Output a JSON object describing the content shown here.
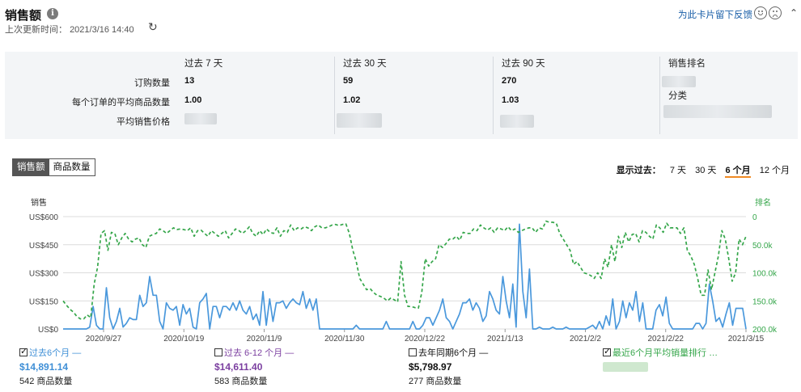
{
  "header": {
    "title": "销售额",
    "updated_label": "上次更新时间：",
    "updated_time": "2021/3/16 14:40",
    "feedback": "为此卡片留下反馈"
  },
  "metrics": {
    "columns": [
      {
        "header": "过去 7 天",
        "orders": "13",
        "avg_items": "1.00"
      },
      {
        "header": "过去 30 天",
        "orders": "59",
        "avg_items": "1.02"
      },
      {
        "header": "过去 90 天",
        "orders": "270",
        "avg_items": "1.03"
      }
    ],
    "row_labels": [
      "订购数量",
      "每个订单的平均商品数量",
      "平均销售价格"
    ],
    "rank_header": "销售排名",
    "category_label": "分类"
  },
  "toggle": {
    "sales": "销售额",
    "units": "商品数量"
  },
  "range": {
    "label": "显示过去：",
    "options": [
      "7 天",
      "30 天",
      "6 个月",
      "12 个月"
    ],
    "selected": "6 个月"
  },
  "legend": [
    {
      "label": "过去6个月",
      "value": "$14,891.14",
      "units": "542 商品数量",
      "color": "#3f8fd6",
      "checked": true
    },
    {
      "label": "过去 6-12 个月",
      "value": "$14,611.40",
      "units": "583 商品数量",
      "color": "#7b3fa0",
      "checked": false
    },
    {
      "label": "去年同期6个月",
      "value": "$5,798.97",
      "units": "277 商品数量",
      "color": "#111111",
      "checked": false
    },
    {
      "label": "最近6个月平均销量排行 …",
      "color": "#35a64a",
      "checked": true
    }
  ],
  "chart_data": {
    "type": "line",
    "left_axis_label": "销售",
    "right_axis_label": "排名",
    "left_ticks": [
      "US$600",
      "US$450",
      "US$300",
      "US$150",
      "US$0"
    ],
    "right_ticks": [
      "0",
      "50.0k",
      "100.0k",
      "150.0k",
      "200.0k"
    ],
    "x_labels": [
      "2020/9/27",
      "2020/10/19",
      "2020/11/9",
      "2020/11/30",
      "2020/12/22",
      "2021/1/13",
      "2021/2/2",
      "2021/2/22",
      "2021/3/15"
    ],
    "ylim": [
      0,
      600
    ],
    "y2lim": [
      0,
      200000
    ],
    "series": [
      {
        "name": "过去6个月",
        "axis": "left",
        "color": "#4a98dc",
        "values": [
          0,
          0,
          0,
          0,
          0,
          0,
          0,
          0,
          10,
          120,
          20,
          0,
          0,
          220,
          60,
          0,
          40,
          110,
          10,
          30,
          60,
          50,
          50,
          180,
          120,
          140,
          280,
          180,
          180,
          40,
          0,
          140,
          110,
          100,
          120,
          20,
          130,
          80,
          110,
          10,
          0,
          140,
          160,
          190,
          0,
          120,
          120,
          60,
          120,
          120,
          100,
          140,
          100,
          150,
          100,
          80,
          120,
          50,
          80,
          20,
          200,
          20,
          160,
          40,
          140,
          140,
          150,
          110,
          140,
          160,
          140,
          130,
          200,
          110,
          160,
          100,
          160,
          0,
          0,
          0,
          0,
          0,
          0,
          0,
          0,
          0,
          0,
          0,
          20,
          0,
          0,
          0,
          0,
          0,
          0,
          0,
          0,
          40,
          0,
          0,
          0,
          0,
          0,
          0,
          0,
          40,
          0,
          0,
          20,
          60,
          60,
          20,
          60,
          100,
          160,
          60,
          40,
          0,
          40,
          80,
          140,
          140,
          160,
          100,
          140,
          110,
          40,
          70,
          200,
          160,
          100,
          80,
          280,
          150,
          60,
          240,
          10,
          560,
          200,
          60,
          320,
          0,
          0,
          10,
          0,
          0,
          0,
          10,
          0,
          0,
          0,
          10,
          0,
          0,
          0,
          0,
          0,
          0,
          10,
          20,
          0,
          40,
          0,
          70,
          20,
          160,
          0,
          40,
          150,
          60,
          140,
          100,
          200,
          40,
          140,
          0,
          0,
          0,
          100,
          130,
          70,
          170,
          30,
          0,
          0,
          0,
          0,
          0,
          0,
          0,
          30,
          30,
          0,
          30,
          240,
          150,
          40,
          60,
          10,
          80,
          140,
          20,
          110,
          110,
          110,
          0
        ]
      },
      {
        "name": "最近6个月平均销量排行",
        "axis": "right",
        "color": "#35a64a",
        "dashed": true,
        "values": [
          150000,
          158000,
          165000,
          170000,
          178000,
          182000,
          182000,
          175000,
          180000,
          120000,
          90000,
          30000,
          25000,
          60000,
          28000,
          30000,
          50000,
          38000,
          30000,
          40000,
          45000,
          40000,
          38000,
          50000,
          55000,
          35000,
          32000,
          30000,
          22000,
          25000,
          30000,
          25000,
          20000,
          23000,
          22000,
          23000,
          25000,
          20000,
          35000,
          25000,
          24000,
          30000,
          35000,
          25000,
          30000,
          35000,
          30000,
          25000,
          38000,
          30000,
          22000,
          25000,
          30000,
          25000,
          18000,
          30000,
          35000,
          25000,
          32000,
          22000,
          28000,
          30000,
          20000,
          35000,
          25000,
          28000,
          15000,
          25000,
          20000,
          22000,
          18000,
          20000,
          25000,
          18000,
          15000,
          20000,
          20000,
          18000,
          15000,
          14000,
          16000,
          14000,
          13000,
          30000,
          60000,
          80000,
          110000,
          120000,
          130000,
          128000,
          135000,
          140000,
          142000,
          145000,
          150000,
          145000,
          148000,
          152000,
          80000,
          140000,
          160000,
          160000,
          162000,
          163000,
          135000,
          75000,
          88000,
          80000,
          75000,
          50000,
          55000,
          48000,
          40000,
          40000,
          35000,
          42000,
          28000,
          30000,
          30000,
          22000,
          25000,
          15000,
          20000,
          24000,
          20000,
          28000,
          20000,
          22000,
          25000,
          18000,
          25000,
          22000,
          28000,
          25000,
          22000,
          20000,
          20000,
          28000,
          20000,
          22000,
          8000,
          10000,
          10000,
          12000,
          30000,
          40000,
          50000,
          60000,
          85000,
          80000,
          90000,
          100000,
          102000,
          105000,
          110000,
          100000,
          110000,
          75000,
          90000,
          50000,
          80000,
          35000,
          55000,
          28000,
          45000,
          32000,
          30000,
          45000,
          25000,
          28000,
          35000,
          40000,
          15000,
          20000,
          28000,
          12000,
          20000,
          20000,
          20000,
          30000,
          20000,
          60000,
          70000,
          85000,
          110000,
          140000,
          140000,
          95000,
          130000,
          100000,
          70000,
          25000,
          40000,
          75000,
          115000,
          100000,
          40000,
          50000,
          35000
        ]
      }
    ]
  }
}
